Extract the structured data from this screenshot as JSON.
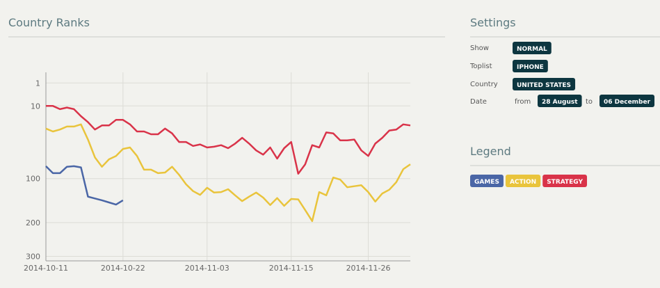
{
  "chart_data": {
    "type": "line",
    "title": "Country Ranks",
    "x": [
      "2014-10-11",
      "2014-10-12",
      "2014-10-13",
      "2014-10-14",
      "2014-10-15",
      "2014-10-16",
      "2014-10-17",
      "2014-10-18",
      "2014-10-19",
      "2014-10-20",
      "2014-10-21",
      "2014-10-22",
      "2014-10-23",
      "2014-10-24",
      "2014-10-25",
      "2014-10-26",
      "2014-10-27",
      "2014-10-28",
      "2014-10-29",
      "2014-10-30",
      "2014-10-31",
      "2014-11-01",
      "2014-11-02",
      "2014-11-03",
      "2014-11-04",
      "2014-11-05",
      "2014-11-06",
      "2014-11-07",
      "2014-11-08",
      "2014-11-09",
      "2014-11-10",
      "2014-11-11",
      "2014-11-12",
      "2014-11-13",
      "2014-11-14",
      "2014-11-15",
      "2014-11-16",
      "2014-11-17",
      "2014-11-18",
      "2014-11-19",
      "2014-11-20",
      "2014-11-21",
      "2014-11-22",
      "2014-11-23",
      "2014-11-24",
      "2014-11-25",
      "2014-11-26",
      "2014-11-27",
      "2014-11-28",
      "2014-11-29",
      "2014-11-30",
      "2014-12-01",
      "2014-12-02"
    ],
    "xlim": [
      "2014-10-11",
      "2014-12-02"
    ],
    "xticks": [
      "2014-10-11",
      "2014-10-22",
      "2014-11-03",
      "2014-11-15",
      "2014-11-26"
    ],
    "ylim": [
      0,
      315
    ],
    "yticks": [
      1,
      10,
      100,
      200,
      300
    ],
    "yscale": "sqrt",
    "yreversed": true,
    "grid": true,
    "series": [
      {
        "name": "GAMES",
        "color": "#4a66a6",
        "values": [
          78,
          90,
          90,
          79,
          78,
          80,
          137,
          141,
          145,
          150,
          155,
          145,
          null,
          null,
          null,
          null,
          null,
          null,
          null,
          null,
          null,
          null,
          null,
          null,
          null,
          null,
          null,
          null,
          null,
          null,
          null,
          null,
          null,
          null,
          null,
          null,
          null,
          null,
          null,
          null,
          null,
          null,
          null,
          null,
          null,
          null,
          null,
          null,
          null,
          null,
          null,
          null,
          null
        ]
      },
      {
        "name": "ACTION",
        "color": "#e9c43c",
        "values": [
          28,
          31,
          29,
          26,
          26,
          24,
          40,
          64,
          79,
          67,
          62,
          52,
          50,
          62,
          84,
          84,
          90,
          89,
          79,
          93,
          111,
          125,
          133,
          118,
          128,
          127,
          121,
          134,
          147,
          137,
          128,
          139,
          156,
          140,
          158,
          142,
          143,
          168,
          196,
          127,
          134,
          98,
          102,
          117,
          115,
          113,
          127,
          148,
          130,
          122,
          107,
          83,
          75
        ]
      },
      {
        "name": "STRATEGY",
        "color": "#d93349",
        "values": [
          10,
          10,
          12,
          11,
          12,
          17,
          22,
          29,
          25,
          25,
          20,
          20,
          24,
          31,
          31,
          34,
          34,
          28,
          33,
          43,
          43,
          48,
          46,
          50,
          49,
          47,
          51,
          45,
          38,
          45,
          54,
          60,
          50,
          66,
          51,
          43,
          91,
          75,
          47,
          50,
          32,
          33,
          41,
          41,
          40,
          54,
          62,
          45,
          38,
          30,
          29,
          24,
          25
        ]
      }
    ]
  },
  "settings": {
    "title": "Settings",
    "rows": [
      {
        "label": "Show",
        "value": "NORMAL"
      },
      {
        "label": "Toplist",
        "value": "IPHONE"
      },
      {
        "label": "Country",
        "value": "UNITED STATES"
      }
    ],
    "date": {
      "label": "Date",
      "from_text": "from",
      "from": "28 August",
      "to_text": "to",
      "to": "06 December"
    }
  },
  "legend": {
    "title": "Legend"
  }
}
